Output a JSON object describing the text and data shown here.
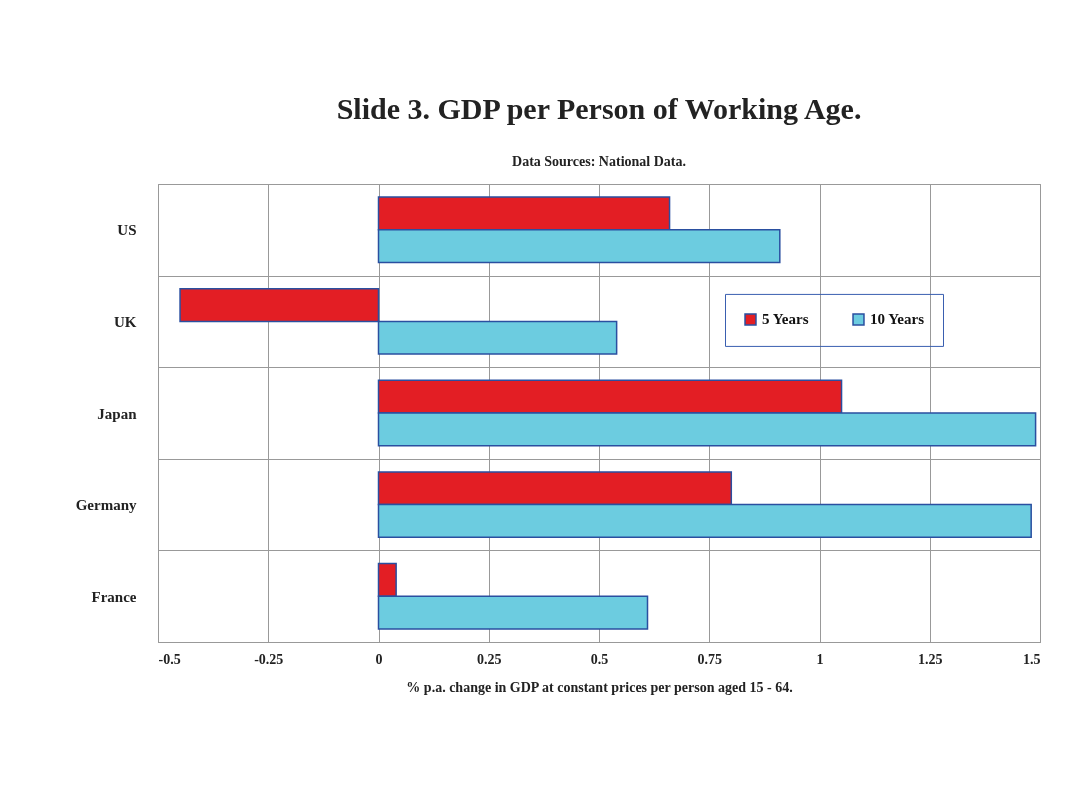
{
  "chart_data": {
    "type": "bar",
    "orientation": "horizontal",
    "title": "Slide 3. GDP per Person of Working Age.",
    "subtitle": "Data Sources: National Data.",
    "xlabel": "% p.a. change in GDP at constant prices per person aged 15 - 64.",
    "categories": [
      "US",
      "UK",
      "Japan",
      "Germany",
      "France"
    ],
    "series": [
      {
        "name": "5 Years",
        "color": "#e31e24",
        "values": [
          0.66,
          -0.45,
          1.05,
          0.8,
          0.04
        ]
      },
      {
        "name": "10 Years",
        "color": "#6ccce0",
        "values": [
          0.91,
          0.54,
          1.49,
          1.48,
          0.61
        ]
      }
    ],
    "xlim": [
      -0.5,
      1.5
    ],
    "xticks": [
      -0.5,
      -0.25,
      0,
      0.25,
      0.5,
      0.75,
      1,
      1.25,
      1.5
    ],
    "grid": true,
    "legend": "right"
  }
}
